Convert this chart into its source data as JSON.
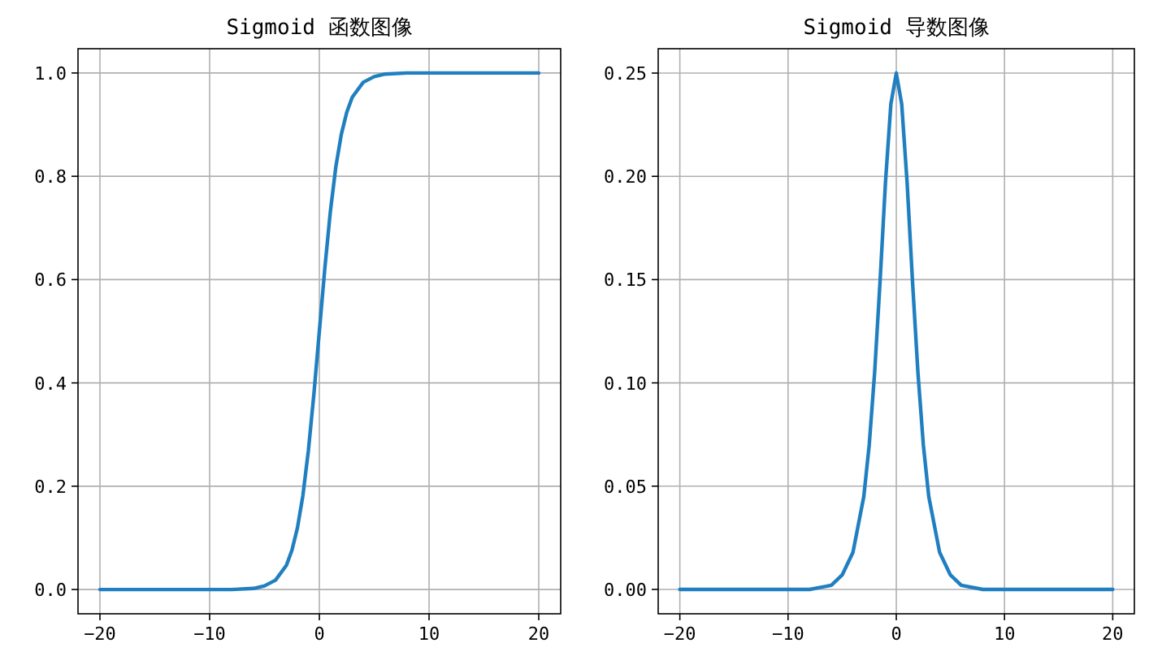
{
  "chart_data": [
    {
      "type": "line",
      "title": "Sigmoid 函数图像",
      "x": [
        -20,
        -10,
        -8,
        -6,
        -5,
        -4,
        -3,
        -2.5,
        -2,
        -1.5,
        -1,
        -0.5,
        0,
        0.5,
        1,
        1.5,
        2,
        2.5,
        3,
        4,
        5,
        6,
        8,
        10,
        20
      ],
      "values": [
        0.0,
        0.0,
        0.0,
        0.002,
        0.007,
        0.018,
        0.047,
        0.076,
        0.119,
        0.182,
        0.269,
        0.378,
        0.5,
        0.622,
        0.731,
        0.818,
        0.881,
        0.924,
        0.953,
        0.982,
        0.993,
        0.998,
        1.0,
        1.0,
        1.0
      ],
      "color": "#1f7fc0",
      "xlim": [
        -22,
        22
      ],
      "ylim": [
        -0.047,
        1.047
      ],
      "xticks": [
        -20,
        -10,
        0,
        10,
        20
      ],
      "yticks": [
        {
          "value": 0,
          "label": "0.0"
        },
        0.2,
        0.4,
        0.6,
        0.8,
        {
          "value": 1,
          "label": "1.0"
        }
      ],
      "grid": true
    },
    {
      "type": "line",
      "title": "Sigmoid 导数图像",
      "x": [
        -20,
        -10,
        -8,
        -6,
        -5,
        -4,
        -3,
        -2.5,
        -2,
        -1.5,
        -1,
        -0.5,
        0,
        0.5,
        1,
        1.5,
        2,
        2.5,
        3,
        4,
        5,
        6,
        8,
        10,
        20
      ],
      "values": [
        0.0,
        0.0,
        0.0,
        0.002,
        0.007,
        0.018,
        0.045,
        0.07,
        0.105,
        0.149,
        0.197,
        0.235,
        0.25,
        0.235,
        0.197,
        0.149,
        0.105,
        0.07,
        0.045,
        0.018,
        0.007,
        0.002,
        0.0,
        0.0,
        0.0
      ],
      "color": "#1f7fc0",
      "xlim": [
        -22,
        22
      ],
      "ylim": [
        -0.0118,
        0.2618
      ],
      "xticks": [
        -20,
        -10,
        0,
        10,
        20
      ],
      "yticks": [
        {
          "value": 0,
          "label": "0.00"
        },
        0.05,
        {
          "value": 0.1,
          "label": "0.10"
        },
        0.15,
        {
          "value": 0.2,
          "label": "0.20"
        },
        0.25
      ],
      "grid": true
    }
  ]
}
